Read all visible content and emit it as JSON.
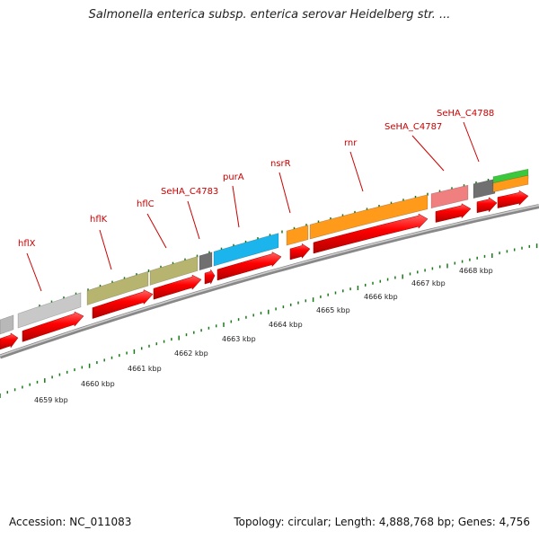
{
  "title": "Salmonella enterica subsp. enterica serovar Heidelberg str. ...",
  "footer": {
    "accession": "Accession: NC_011083",
    "summary": "Topology: circular; Length: 4,888,768 bp; Genes: 4,756"
  },
  "genome_map": {
    "ruler_labels": [
      "4659 kbp",
      "4660 kbp",
      "4661 kbp",
      "4662 kbp",
      "4663 kbp",
      "4664 kbp",
      "4665 kbp",
      "4666 kbp",
      "4667 kbp",
      "4668 kbp"
    ],
    "colors": {
      "cds": "#ff0000",
      "backbone": "#a0a0a0",
      "tick": "#1a7a1a",
      "label": "#cc0000"
    },
    "features": [
      {
        "name": "",
        "color": "#b8b8b8"
      },
      {
        "name": "hflX",
        "color": "#c8c8c8"
      },
      {
        "name": "hflK",
        "color": "#b7b46f"
      },
      {
        "name": "hflC",
        "color": "#b7b46f"
      },
      {
        "name": "SeHA_C4783",
        "color": "#707070"
      },
      {
        "name": "purA",
        "color": "#1cb4ec"
      },
      {
        "name": "nsrR",
        "color": "#ff9a1a"
      },
      {
        "name": "rnr",
        "color": "#ff9a1a"
      },
      {
        "name": "SeHA_C4787",
        "color": "#f08080"
      },
      {
        "name": "SeHA_C4788",
        "color": "#707070"
      },
      {
        "name": "",
        "color": "#3cc83c"
      },
      {
        "name": "",
        "color": "#ff9a1a"
      }
    ]
  }
}
